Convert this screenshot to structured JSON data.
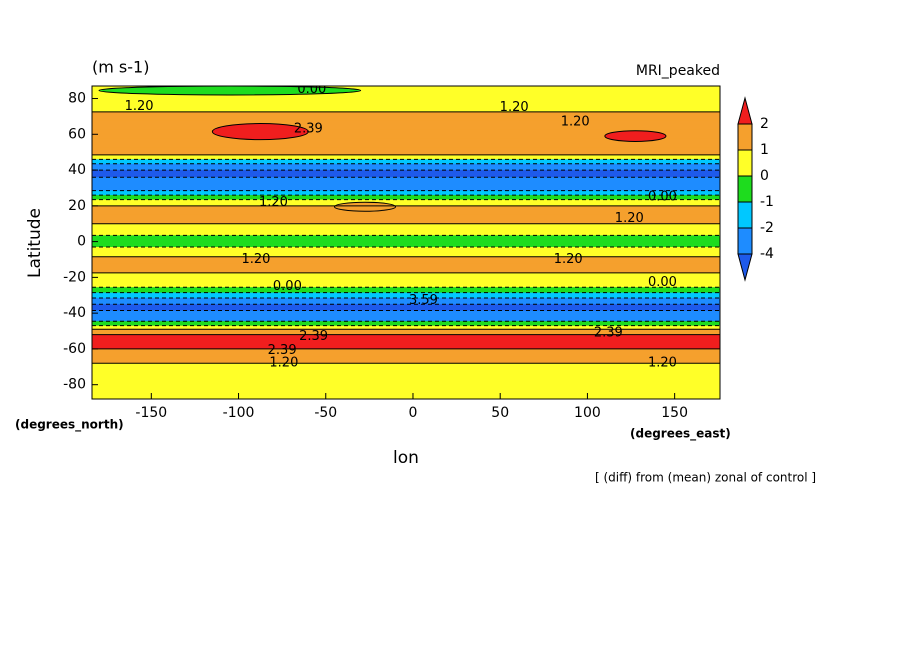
{
  "chart_data": {
    "type": "zonal-contour",
    "title": "(m s-1)",
    "subtitle": "MRI_peaked",
    "x_label": "lon",
    "y_label": "Latitude",
    "x_units": "(degrees_east)",
    "y_units": "(degrees_north)",
    "caption": "[ (diff) from (mean) zonal of control ]",
    "xlim": [
      -184,
      176
    ],
    "ylim": [
      -88,
      87
    ],
    "xticks": [
      -150,
      -100,
      -50,
      0,
      50,
      100,
      150
    ],
    "yticks": [
      -80,
      -60,
      -40,
      -20,
      0,
      20,
      40,
      60,
      80
    ],
    "field": {
      "lat": [
        87,
        85,
        80,
        75,
        70,
        65,
        60,
        55,
        50,
        47,
        45,
        42,
        38,
        34,
        30,
        27,
        25,
        22,
        18,
        12,
        8,
        5,
        2,
        0,
        -2,
        -4,
        -7,
        -10,
        -15,
        -20,
        -24,
        -27,
        -30,
        -33,
        -37,
        -40,
        -43,
        -46,
        -48,
        -50,
        -54,
        -58,
        -62,
        -66,
        -70,
        -75,
        -80,
        -85,
        -88
      ],
      "values": [
        0.3,
        0.3,
        0.6,
        0.9,
        1.3,
        1.5,
        1.6,
        1.4,
        1.1,
        0,
        -1.5,
        -3,
        -4.5,
        -3,
        -2.5,
        -1.5,
        -0.5,
        0.5,
        1.2,
        1.1,
        0.6,
        0.2,
        -0.5,
        -0.8,
        -0.3,
        0.3,
        0.8,
        1.2,
        1.1,
        0.6,
        0.3,
        -0.5,
        -1.5,
        -2.5,
        -4.3,
        -3.5,
        -2.2,
        -0.8,
        0.3,
        1.3,
        2.2,
        2.5,
        1.8,
        1.3,
        0.9,
        0.5,
        0.4,
        0.3,
        0.2
      ]
    },
    "patches": [
      {
        "lon": [
          -115,
          -60
        ],
        "lat": [
          57,
          66
        ],
        "value": 2.4
      },
      {
        "lon": [
          110,
          145
        ],
        "lat": [
          56,
          62
        ],
        "value": 2.4
      },
      {
        "lon": [
          -180,
          -30
        ],
        "lat": [
          82,
          87
        ],
        "value": -0.3
      },
      {
        "lon": [
          -45,
          -10
        ],
        "lat": [
          17,
          22
        ],
        "value": 1.4
      }
    ],
    "colorbar": {
      "ticks": [
        2,
        1,
        0,
        -1,
        -2,
        -4
      ],
      "colors": [
        "#f01e1e",
        "#f5a02d",
        "#ffff28",
        "#1edc1e",
        "#00c8ff",
        "#1e8cff",
        "#1e5aeb"
      ]
    },
    "contour_labels": [
      {
        "text": "0.00",
        "lon": -58,
        "lat": 85
      },
      {
        "text": "1.20",
        "lon": -157,
        "lat": 75.5
      },
      {
        "text": "1.20",
        "lon": 58,
        "lat": 75
      },
      {
        "text": "2.39",
        "lon": -60,
        "lat": 63
      },
      {
        "text": "1.20",
        "lon": 93,
        "lat": 67
      },
      {
        "text": "1.20",
        "lon": -80,
        "lat": 22
      },
      {
        "text": "0.00",
        "lon": 143,
        "lat": 25
      },
      {
        "text": "1.20",
        "lon": 124,
        "lat": 13
      },
      {
        "text": "1.20",
        "lon": -90,
        "lat": -10
      },
      {
        "text": "1.20",
        "lon": 89,
        "lat": -10
      },
      {
        "text": "0.00",
        "lon": -72,
        "lat": -25
      },
      {
        "text": "0.00",
        "lon": 143,
        "lat": -23
      },
      {
        "text": "3.59",
        "lon": 6,
        "lat": -33
      },
      {
        "text": "2.39",
        "lon": -57,
        "lat": -53
      },
      {
        "text": "2.39",
        "lon": 112,
        "lat": -51
      },
      {
        "text": "2.39",
        "lon": -75,
        "lat": -61
      },
      {
        "text": "1.20",
        "lon": -74,
        "lat": -68
      },
      {
        "text": "1.20",
        "lon": 143,
        "lat": -68
      }
    ]
  }
}
